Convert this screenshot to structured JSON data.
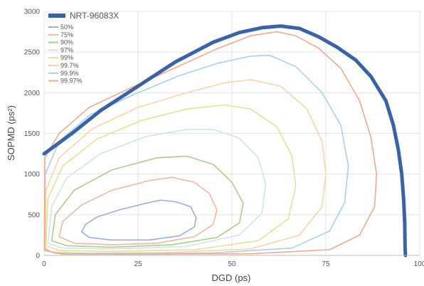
{
  "chart_data": {
    "type": "line",
    "xlabel": "DGD (ps)",
    "ylabel": "SOPMD (ps²)",
    "xlim": [
      0,
      100
    ],
    "ylim": [
      0,
      3000
    ],
    "x_ticks": [
      "0",
      "25",
      "50",
      "75",
      "100"
    ],
    "y_ticks": [
      "0",
      "500",
      "1000",
      "1500",
      "2000",
      "2500",
      "3000"
    ],
    "grid": true,
    "legend_position": "top-left",
    "series": [
      {
        "name": "NRT-96083X",
        "color": "#3a63a6",
        "points": [
          [
            0,
            1250
          ],
          [
            3,
            1350
          ],
          [
            8,
            1520
          ],
          [
            15,
            1780
          ],
          [
            25,
            2080
          ],
          [
            35,
            2380
          ],
          [
            45,
            2620
          ],
          [
            52,
            2740
          ],
          [
            58,
            2800
          ],
          [
            63,
            2820
          ],
          [
            68,
            2790
          ],
          [
            73,
            2690
          ],
          [
            78,
            2560
          ],
          [
            83,
            2400
          ],
          [
            87,
            2200
          ],
          [
            91,
            1900
          ],
          [
            93,
            1600
          ],
          [
            94.3,
            1300
          ],
          [
            95.2,
            1000
          ],
          [
            95.7,
            700
          ],
          [
            96,
            400
          ],
          [
            96.1,
            100
          ],
          [
            96.2,
            0
          ]
        ]
      },
      {
        "name": "50%",
        "color": "#9ab0d8",
        "points": [
          [
            10,
            290
          ],
          [
            11,
            380
          ],
          [
            14,
            470
          ],
          [
            20,
            560
          ],
          [
            27,
            640
          ],
          [
            31,
            680
          ],
          [
            35,
            660
          ],
          [
            39,
            600
          ],
          [
            40.5,
            460
          ],
          [
            40,
            350
          ],
          [
            36,
            240
          ],
          [
            28,
            190
          ],
          [
            18,
            190
          ],
          [
            12,
            220
          ],
          [
            10,
            290
          ]
        ]
      },
      {
        "name": "75%",
        "color": "#f2b8a0",
        "points": [
          [
            4,
            230
          ],
          [
            5,
            420
          ],
          [
            10,
            620
          ],
          [
            18,
            800
          ],
          [
            28,
            920
          ],
          [
            34,
            960
          ],
          [
            40,
            900
          ],
          [
            44,
            760
          ],
          [
            46,
            560
          ],
          [
            45,
            380
          ],
          [
            40,
            230
          ],
          [
            30,
            150
          ],
          [
            18,
            130
          ],
          [
            8,
            150
          ],
          [
            4,
            230
          ]
        ]
      },
      {
        "name": "90%",
        "color": "#a8cf8a",
        "points": [
          [
            2,
            180
          ],
          [
            3,
            500
          ],
          [
            8,
            800
          ],
          [
            18,
            1050
          ],
          [
            30,
            1200
          ],
          [
            38,
            1220
          ],
          [
            45,
            1120
          ],
          [
            50,
            900
          ],
          [
            53,
            640
          ],
          [
            52,
            400
          ],
          [
            46,
            220
          ],
          [
            34,
            130
          ],
          [
            18,
            100
          ],
          [
            6,
            120
          ],
          [
            2,
            180
          ]
        ]
      },
      {
        "name": "97%",
        "color": "#cfe3f3",
        "points": [
          [
            1,
            150
          ],
          [
            2,
            600
          ],
          [
            6,
            950
          ],
          [
            15,
            1250
          ],
          [
            27,
            1460
          ],
          [
            38,
            1550
          ],
          [
            45,
            1550
          ],
          [
            52,
            1440
          ],
          [
            57,
            1200
          ],
          [
            59,
            880
          ],
          [
            58,
            520
          ],
          [
            52,
            250
          ],
          [
            38,
            110
          ],
          [
            18,
            80
          ],
          [
            5,
            90
          ],
          [
            1,
            150
          ]
        ]
      },
      {
        "name": "99%",
        "color": "#e2e29a",
        "points": [
          [
            0.5,
            120
          ],
          [
            1,
            700
          ],
          [
            5,
            1100
          ],
          [
            14,
            1430
          ],
          [
            26,
            1660
          ],
          [
            38,
            1800
          ],
          [
            48,
            1850
          ],
          [
            55,
            1800
          ],
          [
            62,
            1580
          ],
          [
            66,
            1220
          ],
          [
            67,
            850
          ],
          [
            65,
            450
          ],
          [
            57,
            180
          ],
          [
            40,
            70
          ],
          [
            18,
            50
          ],
          [
            4,
            60
          ],
          [
            0.5,
            120
          ]
        ]
      },
      {
        "name": "99.7%",
        "color": "#f6d6a6",
        "points": [
          [
            0.3,
            100
          ],
          [
            0.5,
            800
          ],
          [
            4,
            1200
          ],
          [
            13,
            1560
          ],
          [
            25,
            1820
          ],
          [
            38,
            2000
          ],
          [
            48,
            2120
          ],
          [
            55,
            2160
          ],
          [
            63,
            2080
          ],
          [
            70,
            1800
          ],
          [
            74,
            1400
          ],
          [
            75,
            1000
          ],
          [
            74,
            600
          ],
          [
            68,
            250
          ],
          [
            55,
            80
          ],
          [
            32,
            35
          ],
          [
            10,
            30
          ],
          [
            2,
            40
          ],
          [
            0.3,
            100
          ]
        ]
      },
      {
        "name": "99.9%",
        "color": "#a9cff0",
        "points": [
          [
            0.2,
            80
          ],
          [
            0.3,
            1000
          ],
          [
            4,
            1400
          ],
          [
            12,
            1720
          ],
          [
            24,
            1980
          ],
          [
            36,
            2210
          ],
          [
            46,
            2360
          ],
          [
            55,
            2450
          ],
          [
            60,
            2460
          ],
          [
            67,
            2320
          ],
          [
            74,
            2000
          ],
          [
            79,
            1600
          ],
          [
            81,
            1100
          ],
          [
            80,
            650
          ],
          [
            76,
            300
          ],
          [
            66,
            90
          ],
          [
            45,
            30
          ],
          [
            18,
            20
          ],
          [
            3,
            25
          ],
          [
            0.2,
            80
          ]
        ]
      },
      {
        "name": "99.97%",
        "color": "#f0a98c",
        "points": [
          [
            0.1,
            60
          ],
          [
            0.2,
            1200
          ],
          [
            4,
            1500
          ],
          [
            12,
            1820
          ],
          [
            24,
            2080
          ],
          [
            36,
            2330
          ],
          [
            46,
            2540
          ],
          [
            55,
            2700
          ],
          [
            62,
            2750
          ],
          [
            67,
            2700
          ],
          [
            73,
            2550
          ],
          [
            79,
            2300
          ],
          [
            84,
            1900
          ],
          [
            87,
            1450
          ],
          [
            88.5,
            1000
          ],
          [
            88,
            600
          ],
          [
            84,
            250
          ],
          [
            76,
            70
          ],
          [
            55,
            20
          ],
          [
            28,
            15
          ],
          [
            5,
            15
          ],
          [
            0.1,
            60
          ]
        ]
      }
    ]
  }
}
